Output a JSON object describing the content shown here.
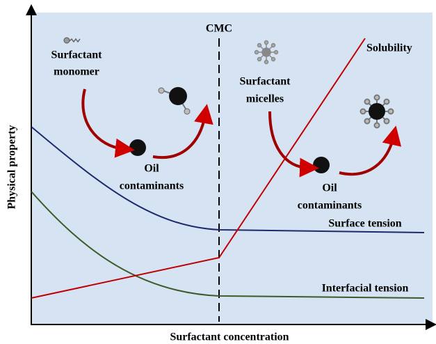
{
  "axes": {
    "x_label": "Surfactant concentration",
    "y_label": "Physical property"
  },
  "cmc": "CMC",
  "curves": {
    "solubility": "Solubility",
    "surface_tension": "Surface tension",
    "interfacial_tension": "Interfacial tension"
  },
  "left_panel": {
    "monomer": [
      "Surfactant",
      "monomer"
    ],
    "oil": [
      "Oil",
      "contaminants"
    ]
  },
  "right_panel": {
    "micelles": [
      "Surfactant",
      "micelles"
    ],
    "oil": [
      "Oil",
      "contaminants"
    ]
  }
}
